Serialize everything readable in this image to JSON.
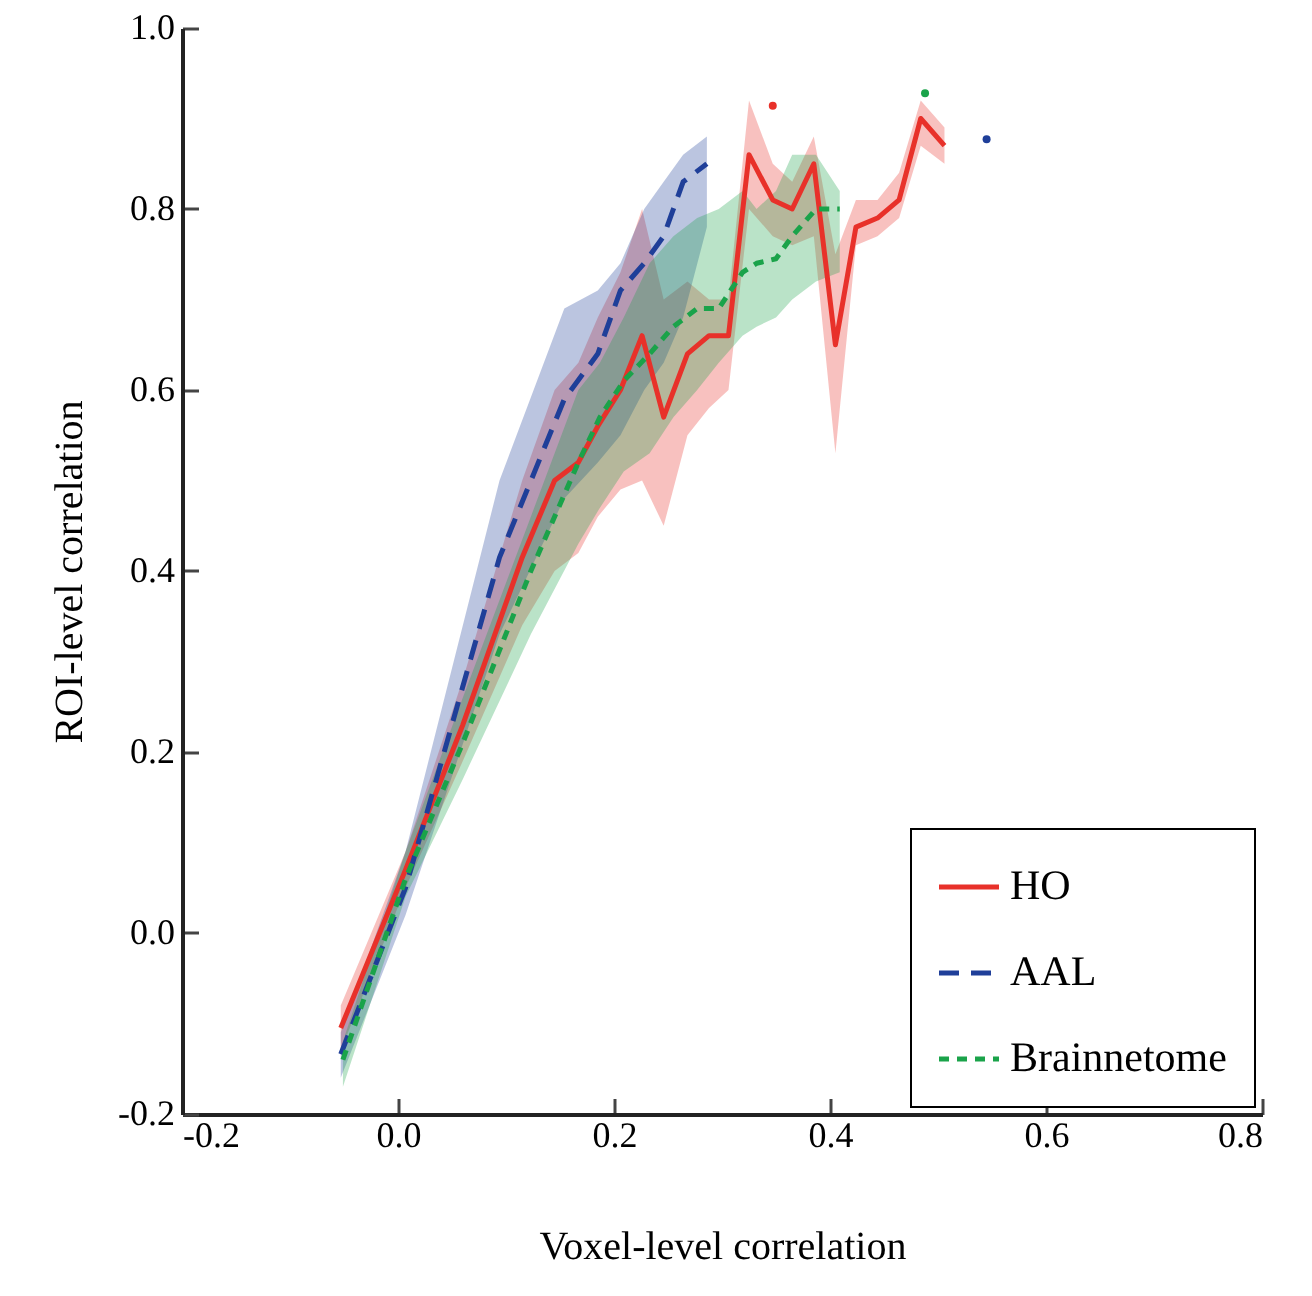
{
  "chart_data": {
    "type": "line",
    "xlabel": "Voxel-level correlation",
    "ylabel": "ROI-level correlation",
    "xlim": [
      -0.2,
      0.8
    ],
    "ylim": [
      -0.2,
      1.0
    ],
    "xticks": [
      {
        "value": -0.2,
        "label": "-0.2"
      },
      {
        "value": 0,
        "label": "0.0"
      },
      {
        "value": 0.2,
        "label": "0.2"
      },
      {
        "value": 0.4,
        "label": "0.4"
      },
      {
        "value": 0.6,
        "label": "0.6"
      },
      {
        "value": 0.8,
        "label": "0.8"
      }
    ],
    "yticks": [
      {
        "value": -0.2,
        "label": "-0.2"
      },
      {
        "value": 0,
        "label": "0.0"
      },
      {
        "value": 0.2,
        "label": "0.2"
      },
      {
        "value": 0.4,
        "label": "0.4"
      },
      {
        "value": 0.6,
        "label": "0.6"
      },
      {
        "value": 0.8,
        "label": "0.8"
      },
      {
        "value": 1.0,
        "label": "1.0"
      }
    ],
    "grid": false,
    "legend": "bottom right",
    "series": [
      {
        "name": "HO",
        "color": "#e8312a",
        "line_style": "solid",
        "x": [
          -0.053,
          0.007,
          0.06,
          0.115,
          0.145,
          0.167,
          0.185,
          0.206,
          0.226,
          0.246,
          0.268,
          0.288,
          0.306,
          0.325,
          0.347,
          0.365,
          0.385,
          0.405,
          0.424,
          0.444,
          0.464,
          0.484,
          0.506
        ],
        "values": [
          -0.105,
          0.07,
          0.23,
          0.415,
          0.5,
          0.52,
          0.56,
          0.6,
          0.66,
          0.57,
          0.64,
          0.66,
          0.66,
          0.86,
          0.81,
          0.8,
          0.85,
          0.65,
          0.78,
          0.79,
          0.81,
          0.9,
          0.87
        ],
        "lower": [
          -0.13,
          0.05,
          0.19,
          0.34,
          0.4,
          0.42,
          0.46,
          0.49,
          0.5,
          0.45,
          0.55,
          0.58,
          0.6,
          0.8,
          0.77,
          0.76,
          0.77,
          0.53,
          0.76,
          0.77,
          0.79,
          0.87,
          0.85
        ],
        "upper": [
          -0.08,
          0.09,
          0.28,
          0.5,
          0.6,
          0.63,
          0.68,
          0.73,
          0.8,
          0.7,
          0.72,
          0.7,
          0.7,
          0.92,
          0.85,
          0.83,
          0.88,
          0.75,
          0.81,
          0.81,
          0.84,
          0.92,
          0.89
        ]
      },
      {
        "name": "AAL",
        "color": "#1f3f99",
        "line_style": "dashed",
        "x": [
          -0.053,
          0.007,
          0.094,
          0.154,
          0.185,
          0.206,
          0.228,
          0.246,
          0.264,
          0.286
        ],
        "values": [
          -0.134,
          0.05,
          0.415,
          0.59,
          0.64,
          0.71,
          0.74,
          0.77,
          0.83,
          0.85
        ],
        "lower": [
          -0.16,
          0.02,
          0.33,
          0.48,
          0.52,
          0.55,
          0.6,
          0.63,
          0.68,
          0.78
        ],
        "upper": [
          -0.11,
          0.09,
          0.5,
          0.69,
          0.71,
          0.74,
          0.8,
          0.83,
          0.86,
          0.88
        ]
      },
      {
        "name": "Brainnetome",
        "color": "#1aa34a",
        "line_style": "dotted",
        "x": [
          -0.051,
          0.007,
          0.06,
          0.123,
          0.167,
          0.187,
          0.209,
          0.233,
          0.255,
          0.277,
          0.297,
          0.319,
          0.332,
          0.35,
          0.365,
          0.387,
          0.409
        ],
        "values": [
          -0.14,
          0.06,
          0.21,
          0.4,
          0.52,
          0.57,
          0.61,
          0.64,
          0.67,
          0.69,
          0.69,
          0.73,
          0.74,
          0.745,
          0.77,
          0.8,
          0.8
        ],
        "lower": [
          -0.17,
          0.04,
          0.17,
          0.33,
          0.43,
          0.47,
          0.51,
          0.53,
          0.57,
          0.6,
          0.63,
          0.66,
          0.67,
          0.68,
          0.7,
          0.72,
          0.73
        ],
        "upper": [
          -0.12,
          0.09,
          0.26,
          0.46,
          0.6,
          0.63,
          0.68,
          0.74,
          0.77,
          0.79,
          0.8,
          0.82,
          0.8,
          0.82,
          0.86,
          0.86,
          0.82
        ]
      },
      {
        "type": "scatter",
        "color": "#e8312a",
        "marker": "circle",
        "x": [
          0.347
        ],
        "values": [
          0.914
        ]
      },
      {
        "type": "scatter",
        "color": "#1aa34a",
        "marker": "circle",
        "x": [
          0.488
        ],
        "values": [
          0.928
        ]
      },
      {
        "type": "scatter",
        "color": "#1f3f99",
        "marker": "circle",
        "x": [
          0.545
        ],
        "values": [
          0.877
        ]
      }
    ]
  }
}
